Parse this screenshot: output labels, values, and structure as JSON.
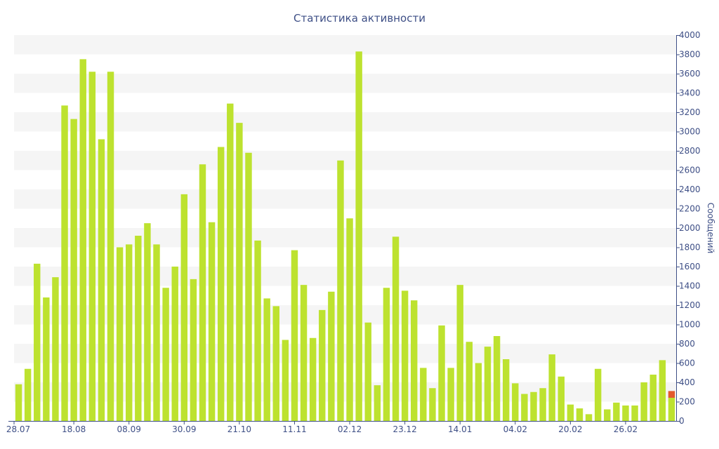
{
  "chart_data": {
    "type": "bar",
    "title": "Статистика активности",
    "ylabel": "Сообщений",
    "xlabel": "",
    "ylim": [
      0,
      4000
    ],
    "y_ticks": [
      0,
      200,
      400,
      600,
      800,
      1000,
      1200,
      1400,
      1600,
      1800,
      2000,
      2200,
      2400,
      2600,
      2800,
      3000,
      3200,
      3400,
      3600,
      3800,
      4000
    ],
    "y_axis_side": "right",
    "grid": "alternating horizontal bands",
    "legend": "none",
    "x_tick_labels": [
      {
        "label": "28.07",
        "index": 0
      },
      {
        "label": "18.08",
        "index": 6
      },
      {
        "label": "08.09",
        "index": 12
      },
      {
        "label": "30.09",
        "index": 18
      },
      {
        "label": "21.10",
        "index": 24
      },
      {
        "label": "11.11",
        "index": 30
      },
      {
        "label": "02.12",
        "index": 36
      },
      {
        "label": "23.12",
        "index": 42
      },
      {
        "label": "14.01",
        "index": 48
      },
      {
        "label": "04.02",
        "index": 54
      },
      {
        "label": "20.02",
        "index": 60
      },
      {
        "label": "26.02",
        "index": 66
      }
    ],
    "series": [
      {
        "values": [
          380,
          540,
          1630,
          1280,
          1490,
          3270,
          3130,
          3750,
          3620,
          2920,
          3620,
          1800,
          1830,
          1920,
          2050,
          1830,
          1380,
          1600,
          2350,
          1470,
          2660,
          2060,
          2840,
          3290,
          3090,
          2780,
          1870,
          1270,
          1190,
          840,
          1770,
          1410,
          860,
          1150,
          1340,
          2700,
          2100,
          3830,
          1020,
          370,
          1380,
          1910,
          1350,
          1250,
          550,
          340,
          990,
          550,
          1410,
          820,
          600,
          770,
          880,
          640,
          390,
          280,
          300,
          340,
          690,
          460,
          170,
          130,
          70,
          540,
          120,
          190,
          160,
          160,
          400,
          480,
          630,
          240
        ]
      },
      {
        "values": [
          0,
          0,
          0,
          0,
          0,
          0,
          0,
          0,
          0,
          0,
          0,
          0,
          0,
          0,
          0,
          0,
          0,
          0,
          0,
          0,
          0,
          0,
          0,
          0,
          0,
          0,
          0,
          0,
          0,
          0,
          0,
          0,
          0,
          0,
          0,
          0,
          0,
          0,
          0,
          0,
          0,
          0,
          0,
          0,
          0,
          0,
          0,
          0,
          0,
          0,
          0,
          0,
          0,
          0,
          0,
          0,
          0,
          0,
          0,
          0,
          0,
          0,
          0,
          0,
          0,
          0,
          0,
          0,
          0,
          0,
          0,
          70
        ]
      }
    ],
    "colors": {
      "bar": "#bde22f",
      "highlight": "#e35a2c",
      "band": "#f5f5f5",
      "text": "#3e4f86",
      "axis": "#3e4f86"
    }
  }
}
